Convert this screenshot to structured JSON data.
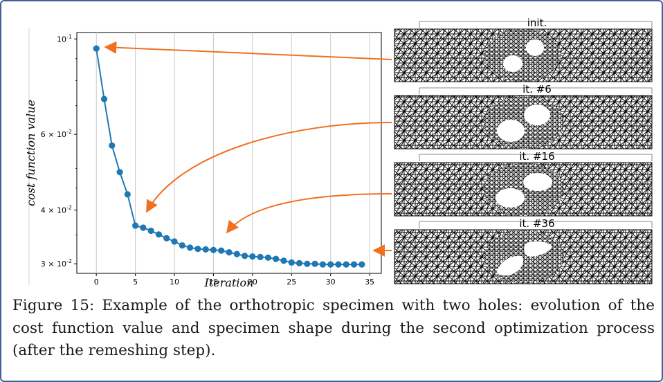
{
  "figure": {
    "caption_lines": [
      "Figure 15: Example of the orthotropic specimen with two holes: evolution of the",
      "cost function value and specimen shape during the second optimization process",
      "(after the remeshing step)."
    ]
  },
  "mesh_panels": [
    {
      "label": "init."
    },
    {
      "label": "it. #6"
    },
    {
      "label": "it. #16"
    },
    {
      "label": "it. #36"
    }
  ],
  "colors": {
    "line": "#1f77b4",
    "arrow": "#f07020",
    "frame": "#3f5f9a",
    "mesh": "#000000"
  },
  "chart_data": {
    "type": "line",
    "xlabel": "Iteration",
    "ylabel": "cost function value",
    "yscale": "log",
    "xlim": [
      -2.5,
      36.5
    ],
    "ylim": [
      0.0285,
      0.1035
    ],
    "xticks": [
      0,
      5,
      10,
      15,
      20,
      25,
      30,
      35
    ],
    "xtick_labels": [
      "0",
      "5",
      "10",
      "15",
      "20",
      "25",
      "30",
      "35"
    ],
    "yticks": [
      0.1,
      0.06,
      0.04,
      0.03
    ],
    "ytick_labels": [
      "10^{-1}",
      "6 × 10^{-2}",
      "4 × 10^{-2}",
      "3 × 10^{-2}"
    ],
    "grid": "x",
    "series": [
      {
        "x": [
          0,
          1,
          2,
          3,
          4,
          5,
          6,
          7,
          8,
          9,
          10,
          11,
          12,
          13,
          14,
          15,
          16,
          17,
          18,
          19,
          20,
          21,
          22,
          23,
          24,
          25,
          26,
          27,
          28,
          29,
          30,
          31,
          32,
          33,
          34
        ],
        "y": [
          0.095,
          0.0725,
          0.0565,
          0.049,
          0.0435,
          0.0368,
          0.0364,
          0.0358,
          0.0351,
          0.0344,
          0.0338,
          0.0331,
          0.0327,
          0.0325,
          0.0324,
          0.0323,
          0.0322,
          0.0319,
          0.0316,
          0.0313,
          0.0312,
          0.0311,
          0.031,
          0.0308,
          0.0305,
          0.0302,
          0.0301,
          0.03,
          0.03,
          0.0299,
          0.0299,
          0.0299,
          0.0299,
          0.0299,
          0.0299
        ]
      }
    ]
  }
}
